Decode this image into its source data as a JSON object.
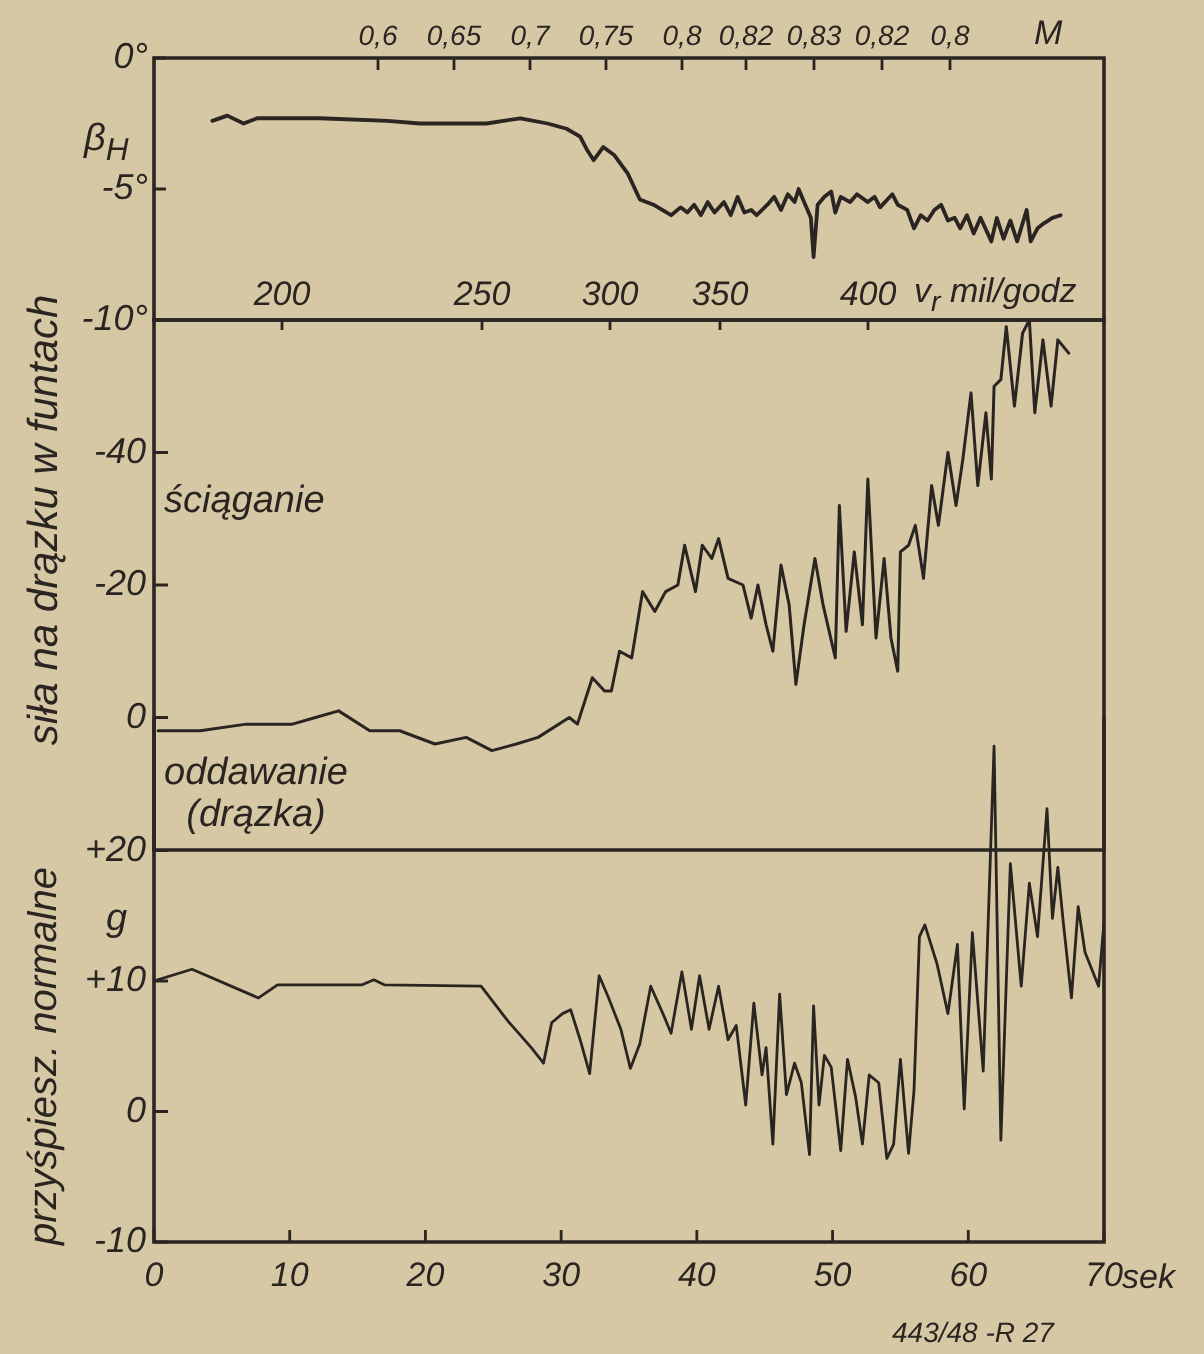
{
  "chart_data": [
    {
      "type": "line",
      "ylabel": "β$_{H}$",
      "color": "#2a2521",
      "annotations": [
        "0,6",
        "0,65",
        "0,7",
        "0,75",
        "0,8",
        "0,82",
        "0,83",
        "0,82",
        "0,8",
        "M",
        "200",
        "250",
        "300",
        "350",
        "400",
        "v$_{r}$ mil/godz"
      ],
      "x": [
        4.3,
        5.4,
        6.6,
        7.6,
        12.2,
        17.2,
        19.6,
        24.5,
        27.0,
        29.0,
        30.4,
        31.4,
        31.9,
        32.4,
        33.1,
        33.9,
        34.9,
        35.8,
        36.8,
        38.1,
        38.8,
        39.3,
        39.8,
        40.3,
        40.8,
        41.3,
        42.0,
        42.5,
        43.0,
        43.5,
        44.0,
        44.4,
        45.2,
        45.7,
        46.2,
        46.7,
        47.2,
        47.5,
        47.9,
        48.4,
        48.6,
        48.9,
        49.4,
        49.9,
        50.2,
        50.6,
        51.3,
        51.8,
        52.6,
        53.1,
        53.5,
        54.4,
        54.8,
        55.5,
        56.0,
        56.5,
        57.0,
        57.5,
        58.0,
        58.5,
        59.0,
        59.4,
        59.9,
        60.4,
        60.9,
        61.7,
        62.1,
        62.6,
        63.1,
        63.6,
        64.3,
        64.6,
        65.1,
        65.6,
        66.2,
        66.8
      ],
      "values": [
        -2.4,
        -2.2,
        -2.5,
        -2.3,
        -2.3,
        -2.4,
        -2.5,
        -2.5,
        -2.3,
        -2.5,
        -2.7,
        -3.0,
        -3.5,
        -3.9,
        -3.4,
        -3.7,
        -4.4,
        -5.4,
        -5.6,
        -6.0,
        -5.7,
        -5.9,
        -5.6,
        -6.0,
        -5.5,
        -5.9,
        -5.5,
        -6.0,
        -5.3,
        -5.9,
        -5.8,
        -6.0,
        -5.6,
        -5.3,
        -5.8,
        -5.2,
        -5.5,
        -5.0,
        -5.5,
        -6.1,
        -7.6,
        -5.6,
        -5.3,
        -5.1,
        -5.9,
        -5.3,
        -5.5,
        -5.2,
        -5.5,
        -5.3,
        -5.7,
        -5.2,
        -5.6,
        -5.8,
        -6.5,
        -6.0,
        -6.2,
        -5.8,
        -5.6,
        -6.2,
        -6.1,
        -6.5,
        -6.0,
        -6.7,
        -6.1,
        -7.0,
        -6.1,
        -6.9,
        -6.2,
        -7.0,
        -5.8,
        -7.0,
        -6.5,
        -6.3,
        -6.1,
        -6.0
      ],
      "xlim": [
        0,
        70
      ],
      "ylim": [
        -10,
        0
      ],
      "yticks": [
        {
          "value": 0,
          "label": "0°"
        },
        {
          "value": -5,
          "label": "-5°"
        },
        {
          "value": -10,
          "label": "-10°"
        }
      ],
      "tick_labels": "y"
    },
    {
      "type": "line",
      "ylabel": "siła na drązku w funtach",
      "annotations": [
        "ściąganie",
        "oddawanie (drązka)"
      ],
      "color": "#2a2521",
      "x": [
        0.3,
        3.4,
        6.8,
        10.2,
        11.9,
        13.6,
        15.9,
        18.1,
        20.7,
        23.0,
        24.9,
        26.7,
        28.3,
        30.6,
        31.2,
        32.3,
        33.2,
        33.7,
        34.3,
        35.2,
        36.0,
        36.9,
        37.7,
        38.6,
        39.1,
        39.9,
        40.4,
        41.1,
        41.6,
        42.3,
        43.4,
        44.0,
        44.5,
        45.1,
        45.6,
        46.2,
        46.8,
        47.3,
        47.9,
        48.7,
        49.3,
        50.2,
        50.5,
        51.0,
        51.6,
        52.2,
        52.6,
        53.2,
        53.8,
        54.3,
        54.8,
        55.0,
        55.6,
        56.1,
        56.7,
        57.3,
        57.8,
        58.5,
        59.1,
        59.6,
        60.2,
        60.7,
        61.3,
        61.7,
        61.9,
        62.4,
        62.8,
        63.4,
        64.0,
        64.5,
        64.9,
        65.5,
        66.1,
        66.6,
        67.4
      ],
      "values": [
        2,
        2,
        1,
        1,
        0,
        -1,
        2,
        2,
        4,
        3,
        5,
        4,
        3,
        0,
        1,
        -6,
        -4,
        -4,
        -10,
        -9,
        -19,
        -16,
        -19,
        -20,
        -26,
        -19,
        -26,
        -24,
        -27,
        -21,
        -20,
        -15,
        -20,
        -14,
        -10,
        -23,
        -17,
        -5,
        -14,
        -24,
        -17,
        -9,
        -32,
        -13,
        -25,
        -14,
        -36,
        -12,
        -24,
        -12,
        -7,
        -25,
        -26,
        -29,
        -21,
        -35,
        -29,
        -40,
        -32,
        -39,
        -49,
        -35,
        -46,
        -36,
        -50,
        -51,
        -59,
        -47,
        -58,
        -60,
        -46,
        -57,
        -47,
        -57,
        -55
      ],
      "xlim": [
        0,
        70
      ],
      "ylim": [
        20,
        -60
      ],
      "yticks": [
        -40,
        -20,
        0
      ],
      "tick_labels": "y"
    },
    {
      "type": "line",
      "ylabel": "przyśpiesz. normalne",
      "xlabel": "sek",
      "annotations": [
        "g",
        "443/48 -R 27"
      ],
      "color": "#2a2521",
      "x": [
        0,
        2.8,
        7.7,
        9.1,
        15.3,
        16.2,
        17.0,
        24.1,
        26.1,
        27.8,
        28.7,
        29.3,
        30.1,
        30.7,
        31.4,
        32.1,
        32.8,
        33.5,
        34.4,
        35.1,
        35.8,
        36.6,
        37.5,
        38.1,
        38.9,
        39.6,
        40.2,
        40.9,
        41.6,
        42.3,
        42.9,
        43.6,
        44.2,
        44.8,
        45.1,
        45.6,
        46.1,
        46.6,
        47.2,
        47.7,
        48.3,
        48.6,
        49.0,
        49.4,
        49.9,
        50.6,
        51.1,
        51.7,
        52.2,
        52.7,
        53.4,
        54.0,
        54.5,
        55.0,
        55.6,
        56.0,
        56.4,
        56.8,
        57.7,
        58.5,
        59.2,
        59.7,
        60.3,
        61.1,
        61.9,
        62.4,
        63.1,
        63.9,
        64.5,
        65.1,
        65.8,
        66.2,
        66.6,
        67.0,
        67.6,
        68.1,
        68.6,
        69.6,
        70.0
      ],
      "values": [
        10,
        10.9,
        8.7,
        9.7,
        9.7,
        10.1,
        9.7,
        9.6,
        6.9,
        4.9,
        3.7,
        6.8,
        7.5,
        7.8,
        5.5,
        2.9,
        10.4,
        8.7,
        6.3,
        3.3,
        5.2,
        9.6,
        7.5,
        6.0,
        10.7,
        6.3,
        10.4,
        6.3,
        9.6,
        5.5,
        6.6,
        0.5,
        8.3,
        2.8,
        4.9,
        -2.5,
        9.0,
        1.3,
        3.7,
        2.2,
        -3.3,
        8.1,
        0.5,
        4.3,
        3.4,
        -3.0,
        4.0,
        1.1,
        -2.5,
        2.8,
        2.2,
        -3.6,
        -2.5,
        4.0,
        -3.2,
        1.6,
        13.4,
        14.3,
        11.3,
        7.5,
        12.8,
        0.2,
        13.7,
        3.1,
        28.0,
        -2.2,
        19.0,
        9.6,
        17.5,
        13.4,
        23.2,
        14.8,
        18.7,
        14.5,
        8.7,
        15.7,
        12.2,
        9.6,
        14.5
      ],
      "xlim": [
        0,
        70
      ],
      "xticks": [
        0,
        10,
        20,
        30,
        40,
        50,
        60,
        70
      ],
      "ylim": [
        -10,
        30
      ],
      "yticks": [
        {
          "value": 20,
          "label": "+20"
        },
        {
          "value": 10,
          "label": "+10"
        },
        0,
        -10
      ]
    }
  ]
}
